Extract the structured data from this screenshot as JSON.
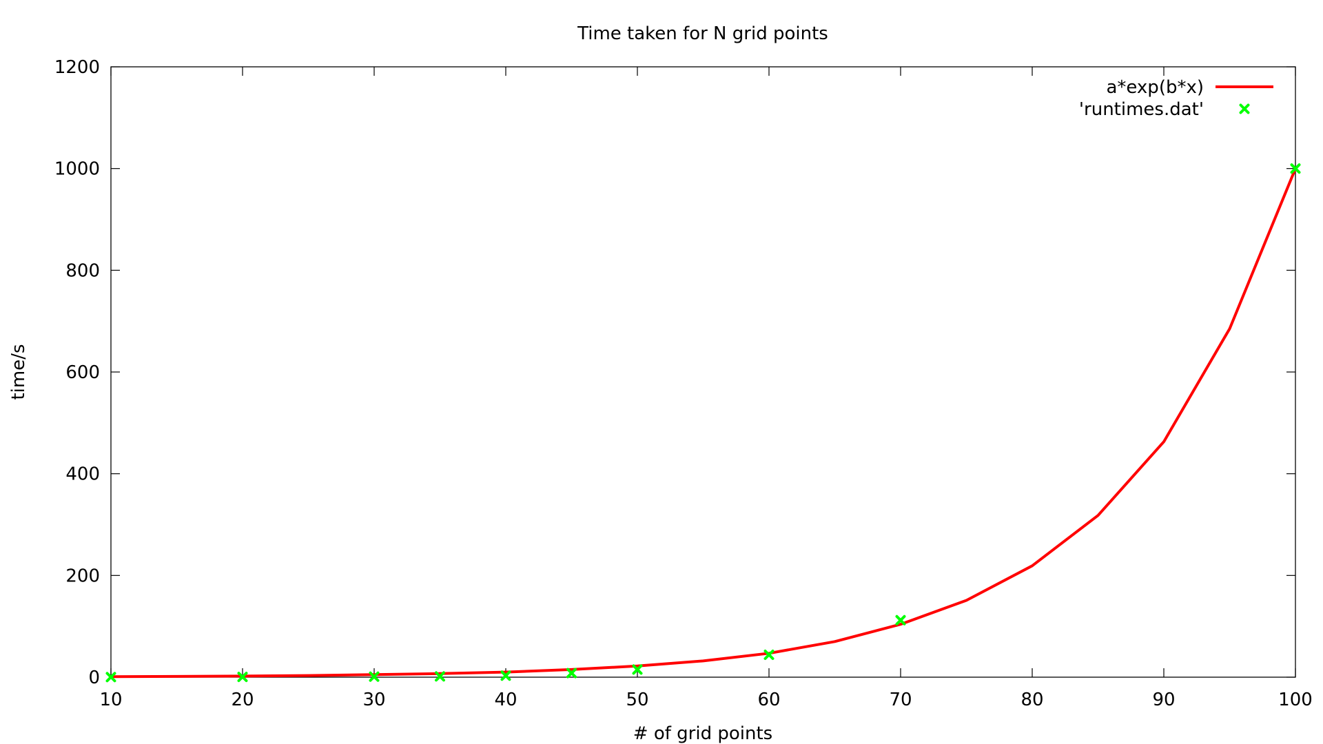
{
  "chart_data": {
    "type": "scatter",
    "title": "Time taken for N grid points",
    "xlabel": "# of grid points",
    "ylabel": "time/s",
    "xlim": [
      10,
      100
    ],
    "ylim": [
      0,
      1200
    ],
    "x_ticks": [
      10,
      20,
      30,
      40,
      50,
      60,
      70,
      80,
      90,
      100
    ],
    "y_ticks": [
      0,
      200,
      400,
      600,
      800,
      1000,
      1200
    ],
    "grid": false,
    "legend_position": "top-right",
    "series": [
      {
        "name": "a*exp(b*x)",
        "kind": "line",
        "color": "#ff0000",
        "x": [
          10,
          15,
          20,
          25,
          30,
          35,
          40,
          45,
          50,
          55,
          60,
          65,
          70,
          75,
          80,
          85,
          90,
          95,
          100
        ],
        "y": [
          1,
          1.5,
          2.2,
          3.2,
          5,
          7,
          10,
          15,
          22,
          32,
          47,
          70,
          104,
          151,
          219,
          318,
          463,
          685,
          1000
        ]
      },
      {
        "name": "'runtimes.dat'",
        "kind": "points",
        "marker": "x",
        "color": "#00ff00",
        "x": [
          10,
          20,
          30,
          35,
          40,
          45,
          50,
          60,
          70,
          100
        ],
        "y": [
          0.2,
          0.5,
          1,
          1.5,
          3,
          8,
          15,
          44,
          112,
          1000
        ]
      }
    ]
  }
}
